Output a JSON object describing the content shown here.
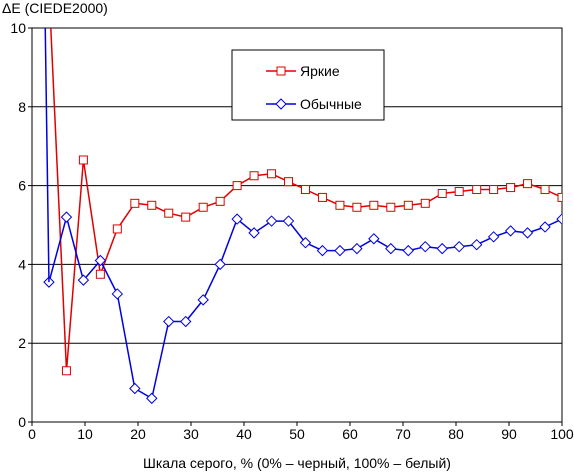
{
  "chart_data": {
    "type": "line",
    "title": "",
    "ylabel": "ΔE (CIEDE2000)",
    "xlabel": "Шкала серого, % (0% – черный, 100% – белый)",
    "xlim": [
      0,
      100
    ],
    "ylim": [
      0,
      10
    ],
    "x_ticks": [
      0,
      10,
      20,
      30,
      40,
      50,
      60,
      70,
      80,
      90,
      100
    ],
    "y_ticks": [
      0,
      2,
      4,
      6,
      8,
      10
    ],
    "grid": "horizontal",
    "legend_position": "top-center",
    "series": [
      {
        "name": "Яркие",
        "color": "#e00000",
        "marker": "square",
        "x": [
          3.2,
          6.5,
          9.7,
          12.9,
          16.1,
          19.4,
          22.6,
          25.8,
          29.0,
          32.3,
          35.5,
          38.7,
          41.9,
          45.2,
          48.4,
          51.6,
          54.8,
          58.1,
          61.3,
          64.5,
          67.7,
          71.0,
          74.2,
          77.4,
          80.6,
          83.9,
          87.1,
          90.3,
          93.5,
          96.8,
          100.0
        ],
        "y": [
          11.0,
          1.3,
          6.65,
          3.75,
          4.9,
          5.55,
          5.5,
          5.3,
          5.2,
          5.45,
          5.6,
          6.0,
          6.25,
          6.3,
          6.1,
          5.9,
          5.7,
          5.5,
          5.45,
          5.5,
          5.45,
          5.5,
          5.55,
          5.8,
          5.85,
          5.9,
          5.9,
          5.95,
          6.05,
          5.9,
          5.7
        ]
      },
      {
        "name": "Обычные",
        "color": "#0000e0",
        "marker": "diamond",
        "x": [
          3.2,
          6.5,
          9.7,
          12.9,
          16.1,
          19.4,
          22.6,
          25.8,
          29.0,
          32.3,
          35.5,
          38.7,
          41.9,
          45.2,
          48.4,
          51.6,
          54.8,
          58.1,
          61.3,
          64.5,
          67.7,
          71.0,
          74.2,
          77.4,
          80.6,
          83.9,
          87.1,
          90.3,
          93.5,
          96.8,
          100.0
        ],
        "y": [
          3.55,
          5.2,
          3.6,
          4.1,
          3.25,
          0.85,
          0.6,
          2.55,
          2.55,
          3.1,
          4.0,
          5.15,
          4.8,
          5.1,
          5.1,
          4.55,
          4.35,
          4.35,
          4.4,
          4.65,
          4.4,
          4.35,
          4.45,
          4.4,
          4.45,
          4.5,
          4.7,
          4.85,
          4.8,
          4.95,
          5.15
        ]
      }
    ]
  }
}
